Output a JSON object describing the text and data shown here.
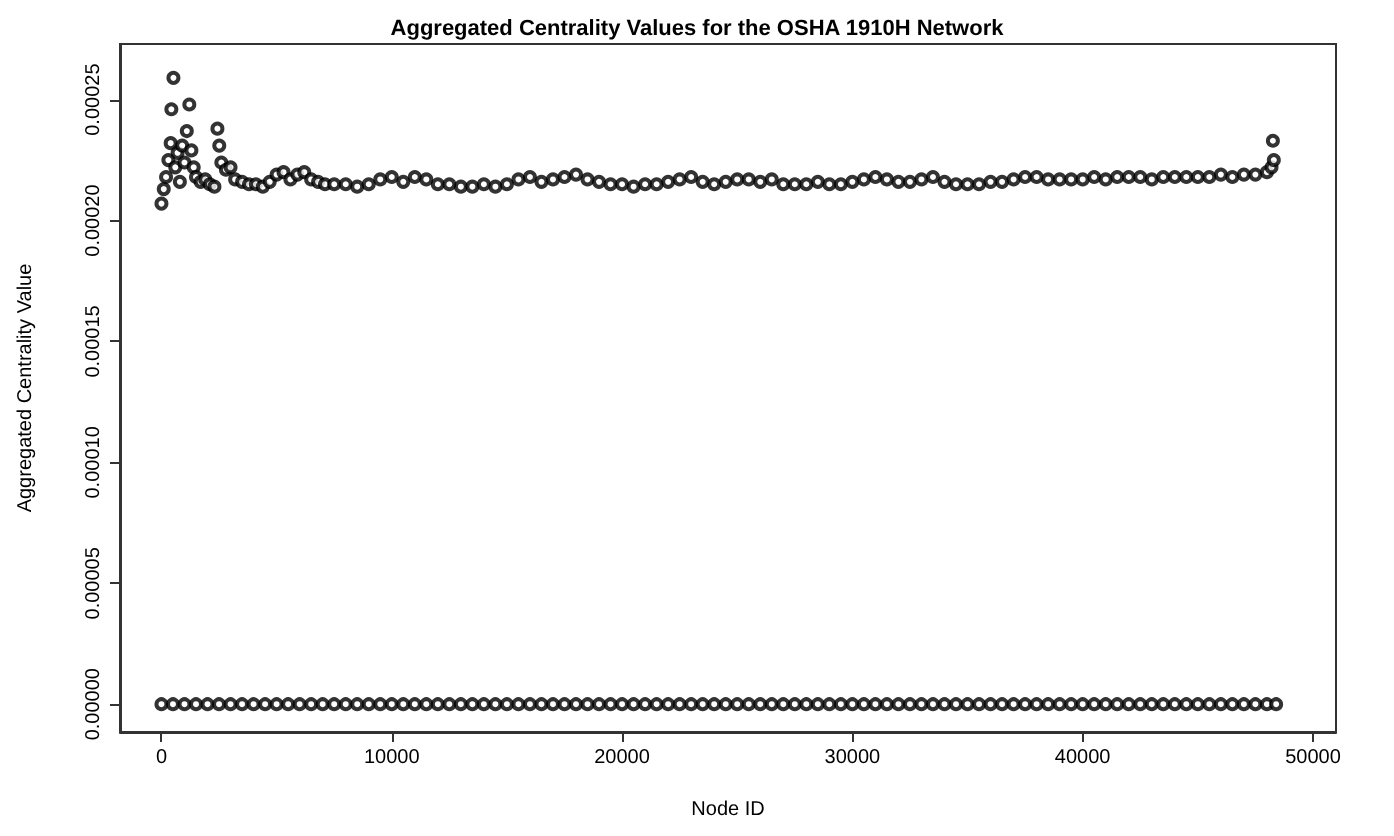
{
  "chart_data": {
    "type": "scatter",
    "title": "Aggregated Centrality Values for the OSHA 1910H Network",
    "xlabel": "Node ID",
    "ylabel": "Aggregated Centrality Value",
    "marker": "circle",
    "grid": false,
    "xlim": [
      -1800,
      51000
    ],
    "xticks": [
      0,
      10000,
      20000,
      30000,
      40000,
      50000
    ],
    "ylim": [
      -1.15e-05,
      0.000273
    ],
    "yticks": [
      {
        "value": 0,
        "label": "0.00000"
      },
      {
        "value": 5e-05,
        "label": "0.00005"
      },
      {
        "value": 0.0001,
        "label": "0.00010"
      },
      {
        "value": 0.00015,
        "label": "0.00015"
      },
      {
        "value": 0.0002,
        "label": "0.00020"
      },
      {
        "value": 0.00025,
        "label": "0.00025"
      }
    ],
    "series": [
      {
        "color": "#000000",
        "x": [
          0,
          100,
          200,
          300,
          400,
          430,
          520,
          600,
          700,
          800,
          900,
          1000,
          1100,
          1210,
          1300,
          1400,
          1500,
          1700,
          1900,
          2100,
          2300,
          2430,
          2510,
          2600,
          2800,
          3000,
          3200,
          3500,
          3800,
          4100,
          4400,
          4700,
          5000,
          5300,
          5600,
          5900,
          6200,
          6500,
          6800,
          7100,
          7500,
          8000,
          8500,
          9000,
          9500,
          10000,
          10500,
          11000,
          11500,
          12000,
          12500,
          13000,
          13500,
          14000,
          14500,
          15000,
          15500,
          16000,
          16500,
          17000,
          17500,
          18000,
          18500,
          19000,
          19500,
          20000,
          20500,
          21000,
          21500,
          22000,
          22500,
          23000,
          23500,
          24000,
          24500,
          25000,
          25500,
          26000,
          26500,
          27000,
          27500,
          28000,
          28500,
          29000,
          29500,
          30000,
          30500,
          31000,
          31500,
          32000,
          32500,
          33000,
          33500,
          34000,
          34500,
          35000,
          35500,
          36000,
          36500,
          37000,
          37500,
          38000,
          38500,
          39000,
          39500,
          40000,
          40500,
          41000,
          41500,
          42000,
          42500,
          43000,
          43500,
          44000,
          44500,
          45000,
          45500,
          46000,
          46500,
          47000,
          47500,
          48000,
          48200,
          48300,
          48260
        ],
        "values": [
          0.000207,
          0.000213,
          0.000218,
          0.000225,
          0.000232,
          0.000246,
          0.000259,
          0.000222,
          0.000228,
          0.000216,
          0.000231,
          0.000224,
          0.000237,
          0.000248,
          0.000229,
          0.000222,
          0.000218,
          0.000216,
          0.000217,
          0.000215,
          0.000214,
          0.000238,
          0.000231,
          0.000224,
          0.000221,
          0.000222,
          0.000217,
          0.000216,
          0.000215,
          0.000215,
          0.000214,
          0.000216,
          0.000219,
          0.00022,
          0.000217,
          0.000219,
          0.00022,
          0.000217,
          0.000216,
          0.000215,
          0.000215,
          0.000215,
          0.000214,
          0.000215,
          0.000217,
          0.000218,
          0.000216,
          0.000218,
          0.000217,
          0.000215,
          0.000215,
          0.000214,
          0.000214,
          0.000215,
          0.000214,
          0.000215,
          0.000217,
          0.000218,
          0.000216,
          0.000217,
          0.000218,
          0.000219,
          0.000217,
          0.000216,
          0.000215,
          0.000215,
          0.000214,
          0.000215,
          0.000215,
          0.000216,
          0.000217,
          0.000218,
          0.000216,
          0.000215,
          0.000216,
          0.000217,
          0.000217,
          0.000216,
          0.000217,
          0.000215,
          0.000215,
          0.000215,
          0.000216,
          0.000215,
          0.000215,
          0.000216,
          0.000217,
          0.000218,
          0.000217,
          0.000216,
          0.000216,
          0.000217,
          0.000218,
          0.000216,
          0.000215,
          0.000215,
          0.000215,
          0.000216,
          0.000216,
          0.000217,
          0.000218,
          0.000218,
          0.000217,
          0.000217,
          0.000217,
          0.000217,
          0.000218,
          0.000217,
          0.000218,
          0.000218,
          0.000218,
          0.000217,
          0.000218,
          0.000218,
          0.000218,
          0.000218,
          0.000218,
          0.000219,
          0.000218,
          0.000219,
          0.000219,
          0.00022,
          0.000222,
          0.000225,
          0.000233
        ]
      },
      {
        "color": "#000000",
        "x": [
          0,
          500,
          1000,
          1500,
          2000,
          2500,
          3000,
          3500,
          4000,
          4500,
          5000,
          5500,
          6000,
          6500,
          7000,
          7500,
          8000,
          8500,
          9000,
          9500,
          10000,
          10500,
          11000,
          11500,
          12000,
          12500,
          13000,
          13500,
          14000,
          14500,
          15000,
          15500,
          16000,
          16500,
          17000,
          17500,
          18000,
          18500,
          19000,
          19500,
          20000,
          20500,
          21000,
          21500,
          22000,
          22500,
          23000,
          23500,
          24000,
          24500,
          25000,
          25500,
          26000,
          26500,
          27000,
          27500,
          28000,
          28500,
          29000,
          29500,
          30000,
          30500,
          31000,
          31500,
          32000,
          32500,
          33000,
          33500,
          34000,
          34500,
          35000,
          35500,
          36000,
          36500,
          37000,
          37500,
          38000,
          38500,
          39000,
          39500,
          40000,
          40500,
          41000,
          41500,
          42000,
          42500,
          43000,
          43500,
          44000,
          44500,
          45000,
          45500,
          46000,
          46500,
          47000,
          47500,
          48000,
          48400
        ],
        "values": [
          0,
          0,
          0,
          0,
          0,
          0,
          0,
          0,
          0,
          0,
          0,
          0,
          0,
          0,
          0,
          0,
          0,
          0,
          0,
          0,
          0,
          0,
          0,
          0,
          0,
          0,
          0,
          0,
          0,
          0,
          0,
          0,
          0,
          0,
          0,
          0,
          0,
          0,
          0,
          0,
          0,
          0,
          0,
          0,
          0,
          0,
          0,
          0,
          0,
          0,
          0,
          0,
          0,
          0,
          0,
          0,
          0,
          0,
          0,
          0,
          0,
          0,
          0,
          0,
          0,
          0,
          0,
          0,
          0,
          0,
          0,
          0,
          0,
          0,
          0,
          0,
          0,
          0,
          0,
          0,
          0,
          0,
          0,
          0,
          0,
          0,
          0,
          0,
          0,
          0,
          0,
          0,
          0,
          0,
          0,
          0,
          0,
          0
        ]
      }
    ]
  }
}
